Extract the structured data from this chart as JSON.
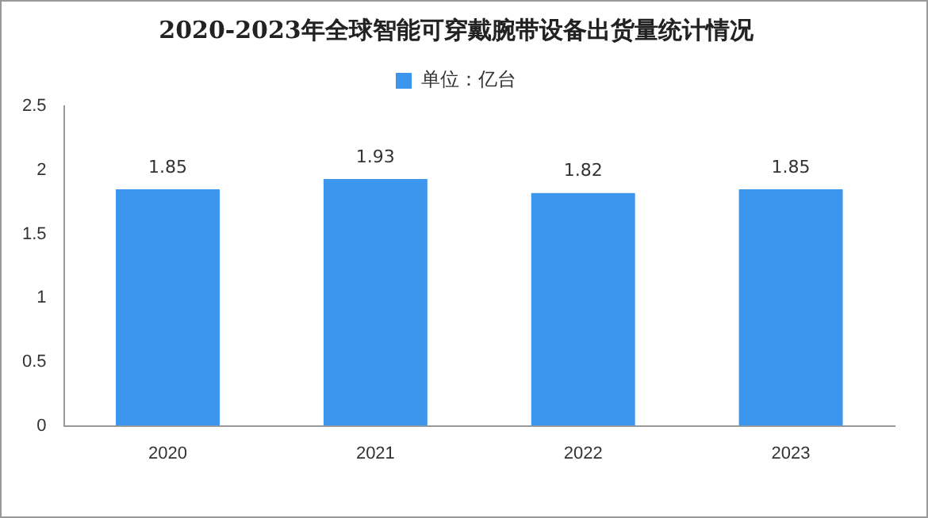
{
  "chart_data": {
    "type": "bar",
    "title": "2020-2023年全球智能可穿戴腕带设备出货量统计情况",
    "categories": [
      "2020",
      "2021",
      "2022",
      "2023"
    ],
    "series": [
      {
        "name": "单位：亿台",
        "color": "#3d96ee",
        "values": [
          1.85,
          1.93,
          1.82,
          1.85
        ]
      }
    ],
    "ylim": [
      0,
      2.5
    ],
    "yticks": [
      0,
      0.5,
      1,
      1.5,
      2,
      2.5
    ],
    "grid": false,
    "legend": "top",
    "data_labels": true
  }
}
